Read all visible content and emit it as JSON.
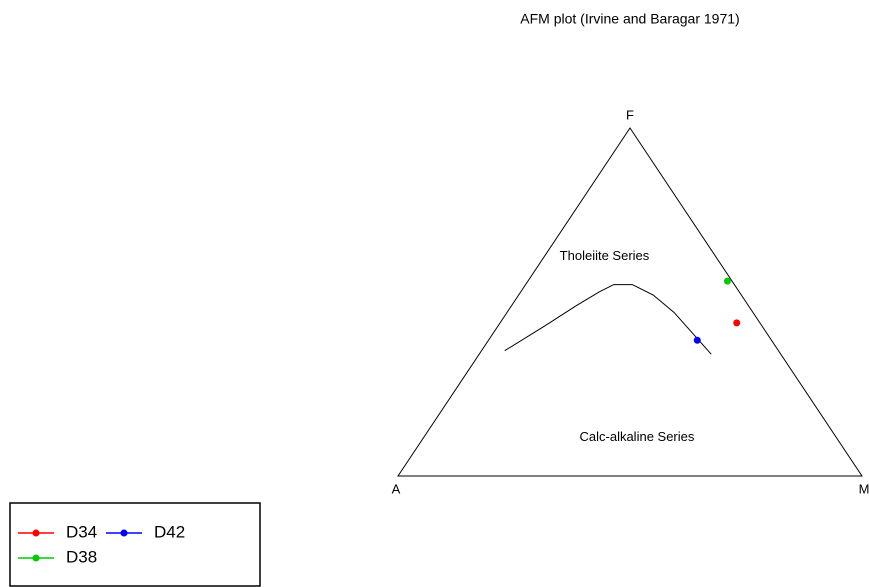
{
  "chart_data": {
    "type": "ternary",
    "title": "AFM plot (Irvine and Baragar 1971)",
    "vertex_labels": {
      "A": "A",
      "F": "F",
      "M": "M"
    },
    "region_labels": [
      {
        "text": "Tholeiite Series",
        "A": 24,
        "F": 63,
        "M": 13
      },
      {
        "text": "Calc-alkaline Series",
        "A": 43,
        "F": 11,
        "M": 46
      }
    ],
    "boundary": {
      "A": [
        59,
        47,
        37,
        30,
        26,
        22,
        19,
        17,
        16,
        15
      ],
      "F": [
        36,
        43,
        49,
        53,
        55,
        55,
        52,
        47,
        41,
        35
      ],
      "M": [
        5,
        10,
        14,
        17,
        19,
        23,
        29,
        36,
        43,
        50
      ]
    },
    "series": [
      {
        "name": "D34",
        "color": "#ff0000",
        "A": 5,
        "F": 44,
        "M": 51
      },
      {
        "name": "D38",
        "color": "#00cc00",
        "A": 1,
        "F": 56,
        "M": 43
      },
      {
        "name": "D42",
        "color": "#0000ff",
        "A": 16,
        "F": 39,
        "M": 45
      }
    ]
  }
}
